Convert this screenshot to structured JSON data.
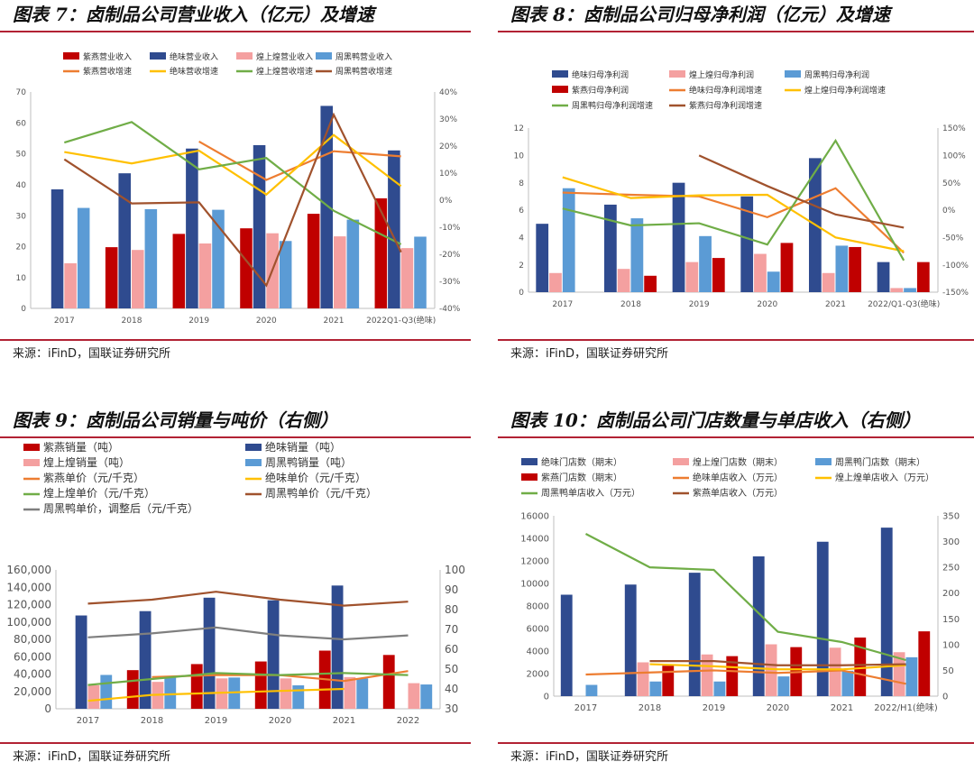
{
  "panels": [
    {
      "title": "图表 7：卤制品公司营业收入（亿元）及增速",
      "source": "来源：iFinD，国联证券研究所",
      "legend": [
        "紫燕营业收入",
        "绝味营业收入",
        "煌上煌营业收入",
        "周黑鸭营业收入",
        "紫燕营收增速",
        "绝味营收增速",
        "煌上煌营收增速",
        "周黑鸭营收增速"
      ],
      "legend_cols": 4
    },
    {
      "title": "图表 8：卤制品公司归母净利润（亿元）及增速",
      "source": "来源：iFinD，国联证券研究所",
      "legend": [
        "绝味归母净利润",
        "煌上煌归母净利润",
        "周黑鸭归母净利润",
        "紫燕归母净利润",
        "绝味归母净利润增速",
        "煌上煌归母净利润增速",
        "周黑鸭归母净利润增速",
        "紫燕归母净利润增速"
      ],
      "legend_cols": 3
    },
    {
      "title": "图表 9：卤制品公司销量与吨价（右侧）",
      "source": "来源：iFinD，国联证券研究所",
      "legend": [
        "紫燕销量（吨）",
        "绝味销量（吨）",
        "煌上煌销量（吨）",
        "周黑鸭销量（吨）",
        "紫燕单价（元/千克）",
        "绝味单价（元/千克）",
        "煌上煌单价（元/千克）",
        "周黑鸭单价（元/千克）",
        "周黑鸭单价，调整后（元/千克）"
      ],
      "legend_cols": 2
    },
    {
      "title": "图表 10：卤制品公司门店数量与单店收入（右侧）",
      "source": "来源：iFinD，国联证券研究所",
      "legend": [
        "绝味门店数（期末）",
        "煌上煌门店数（期末）",
        "周黑鸭门店数（期末）",
        "紫燕门店数（期末）",
        "绝味单店收入（万元）",
        "煌上煌单店收入（万元）",
        "周黑鸭单店收入（万元）",
        "紫燕单店收入（万元）"
      ],
      "legend_cols": 3
    }
  ],
  "chart_data": [
    {
      "type": "bar",
      "title": "卤制品公司营业收入（亿元）及增速",
      "categories": [
        "2017",
        "2018",
        "2019",
        "2020",
        "2021",
        "2022Q1-Q3(绝味)"
      ],
      "ylim": [
        0,
        70
      ],
      "yticks": [
        0,
        10,
        20,
        30,
        40,
        50,
        60,
        70
      ],
      "y2lim": [
        -40,
        40
      ],
      "y2ticks": [
        "-40%",
        "-30%",
        "-20%",
        "-10%",
        "0%",
        "10%",
        "20%",
        "30%",
        "40%"
      ],
      "series": [
        {
          "name": "紫燕营业收入",
          "color": "#c00000",
          "values": [
            null,
            19.8,
            24.1,
            25.9,
            30.6,
            35.6
          ]
        },
        {
          "name": "绝味营业收入",
          "color": "#2f4b8f",
          "values": [
            38.5,
            43.7,
            51.7,
            52.8,
            65.5,
            51.1
          ]
        },
        {
          "name": "煌上煌营业收入",
          "color": "#f4a0a0",
          "values": [
            14.6,
            18.9,
            21.0,
            24.3,
            23.3,
            19.5
          ]
        },
        {
          "name": "周黑鸭营业收入",
          "color": "#5b9bd5",
          "values": [
            32.5,
            32.1,
            31.9,
            21.8,
            28.7,
            23.2
          ]
        }
      ],
      "lines": [
        {
          "name": "紫燕营收增速",
          "color": "#ed7d31",
          "values": [
            null,
            null,
            21.7,
            7.5,
            18.1,
            16.2
          ]
        },
        {
          "name": "绝味营收增速",
          "color": "#ffc000",
          "values": [
            17.8,
            13.6,
            18.3,
            2.1,
            24.1,
            5.2
          ]
        },
        {
          "name": "煌上煌营收增速",
          "color": "#70ad47",
          "values": [
            21.3,
            28.9,
            11.4,
            15.6,
            -3.9,
            -16.3
          ]
        },
        {
          "name": "周黑鸭营收增速",
          "color": "#a0522d",
          "values": [
            15.1,
            -1.2,
            -0.8,
            -31.5,
            31.6,
            -19.2
          ]
        }
      ]
    },
    {
      "type": "bar",
      "title": "卤制品公司归母净利润（亿元）及增速",
      "categories": [
        "2017",
        "2018",
        "2019",
        "2020",
        "2021",
        "2022/Q1-Q3(绝味)"
      ],
      "ylim": [
        0,
        12
      ],
      "yticks": [
        0,
        2,
        4,
        6,
        8,
        10,
        12
      ],
      "y2lim": [
        -150,
        150
      ],
      "y2ticks": [
        "-150%",
        "-100%",
        "-50%",
        "0%",
        "50%",
        "100%",
        "150%"
      ],
      "series": [
        {
          "name": "绝味归母净利润",
          "color": "#2f4b8f",
          "values": [
            5.0,
            6.4,
            8.0,
            7.0,
            9.8,
            2.2
          ]
        },
        {
          "name": "煌上煌归母净利润",
          "color": "#f4a0a0",
          "values": [
            1.4,
            1.7,
            2.2,
            2.8,
            1.4,
            0.3
          ]
        },
        {
          "name": "周黑鸭归母净利润",
          "color": "#5b9bd5",
          "values": [
            7.6,
            5.4,
            4.1,
            1.5,
            3.4,
            0.3
          ]
        },
        {
          "name": "紫燕归母净利润",
          "color": "#c00000",
          "values": [
            null,
            1.2,
            2.5,
            3.6,
            3.3,
            2.2
          ]
        }
      ],
      "lines": [
        {
          "name": "绝味归母净利润增速",
          "color": "#ed7d31",
          "values": [
            32,
            28,
            25,
            -13,
            40,
            -78
          ]
        },
        {
          "name": "煌上煌归母净利润增速",
          "color": "#ffc000",
          "values": [
            60,
            22,
            27,
            28,
            -50,
            -75
          ]
        },
        {
          "name": "周黑鸭归母净利润增速",
          "color": "#70ad47",
          "values": [
            3,
            -28,
            -24,
            -63,
            127,
            -92
          ]
        },
        {
          "name": "紫燕归母净利润增速",
          "color": "#a0522d",
          "values": [
            null,
            null,
            100,
            44,
            -8,
            -32
          ]
        }
      ]
    },
    {
      "type": "bar",
      "title": "卤制品公司销量与吨价（右侧）",
      "categories": [
        "2017",
        "2018",
        "2019",
        "2020",
        "2021",
        "2022"
      ],
      "ylim": [
        0,
        160000
      ],
      "yticks": [
        "0",
        "20,000",
        "40,000",
        "60,000",
        "80,000",
        "100,000",
        "120,000",
        "140,000",
        "160,000"
      ],
      "y2lim": [
        30,
        100
      ],
      "y2ticks": [
        30,
        40,
        50,
        60,
        70,
        80,
        90,
        100
      ],
      "series": [
        {
          "name": "紫燕销量（吨）",
          "color": "#c00000",
          "values": [
            null,
            44500,
            51500,
            54500,
            67000,
            62000
          ]
        },
        {
          "name": "绝味销量（吨）",
          "color": "#2f4b8f",
          "values": [
            107500,
            112500,
            128000,
            125000,
            142000,
            null
          ]
        },
        {
          "name": "煌上煌销量（吨）",
          "color": "#f4a0a0",
          "values": [
            27000,
            31000,
            35000,
            35000,
            36500,
            29500
          ]
        },
        {
          "name": "周黑鸭销量（吨）",
          "color": "#5b9bd5",
          "values": [
            39000,
            36000,
            36000,
            27000,
            35000,
            28000
          ]
        }
      ],
      "lines": [
        {
          "name": "紫燕单价（元/千克）",
          "color": "#ed7d31",
          "values": [
            null,
            46,
            47,
            47,
            44,
            49
          ]
        },
        {
          "name": "绝味单价（元/千克）",
          "color": "#ffc000",
          "values": [
            34,
            37,
            38,
            39,
            40,
            null
          ]
        },
        {
          "name": "煌上煌单价（元/千克）",
          "color": "#70ad47",
          "values": [
            42,
            45,
            48,
            47,
            48,
            47
          ]
        },
        {
          "name": "周黑鸭单价（元/千克）",
          "color": "#a0522d",
          "values": [
            83,
            85,
            89,
            85,
            82,
            84
          ]
        },
        {
          "name": "周黑鸭单价，调整后（元/千克）",
          "color": "#7f7f7f",
          "values": [
            66,
            68,
            71,
            67,
            65,
            67
          ]
        }
      ]
    },
    {
      "type": "bar",
      "title": "卤制品公司门店数量与单店收入（右侧）",
      "categories": [
        "2017",
        "2018",
        "2019",
        "2020",
        "2021",
        "2022/H1(绝味)"
      ],
      "ylim": [
        0,
        16000
      ],
      "yticks": [
        0,
        2000,
        4000,
        6000,
        8000,
        10000,
        12000,
        14000,
        16000
      ],
      "y2lim": [
        0,
        350
      ],
      "y2ticks": [
        0,
        50,
        100,
        150,
        200,
        250,
        300,
        350
      ],
      "series": [
        {
          "name": "绝味门店数（期末）",
          "color": "#2f4b8f",
          "values": [
            9000,
            9900,
            10950,
            12400,
            13700,
            14950
          ]
        },
        {
          "name": "煌上煌门店数（期末）",
          "color": "#f4a0a0",
          "values": [
            null,
            3000,
            3700,
            4600,
            4300,
            3900
          ]
        },
        {
          "name": "周黑鸭门店数（期末）",
          "color": "#5b9bd5",
          "values": [
            1000,
            1300,
            1300,
            1750,
            2250,
            3450
          ]
        },
        {
          "name": "紫燕门店数（期末）",
          "color": "#c00000",
          "values": [
            null,
            2700,
            3550,
            4350,
            5200,
            5750
          ]
        }
      ],
      "lines": [
        {
          "name": "绝味单店收入（万元）",
          "color": "#ed7d31",
          "values": [
            42,
            46,
            50,
            45,
            50,
            24
          ]
        },
        {
          "name": "煌上煌单店收入（万元）",
          "color": "#ffc000",
          "values": [
            null,
            62,
            58,
            52,
            52,
            60
          ]
        },
        {
          "name": "周黑鸭单店收入（万元）",
          "color": "#70ad47",
          "values": [
            315,
            250,
            245,
            125,
            105,
            70
          ]
        },
        {
          "name": "紫燕单店收入（万元）",
          "color": "#a0522d",
          "values": [
            null,
            68,
            68,
            60,
            60,
            62
          ]
        }
      ]
    }
  ]
}
